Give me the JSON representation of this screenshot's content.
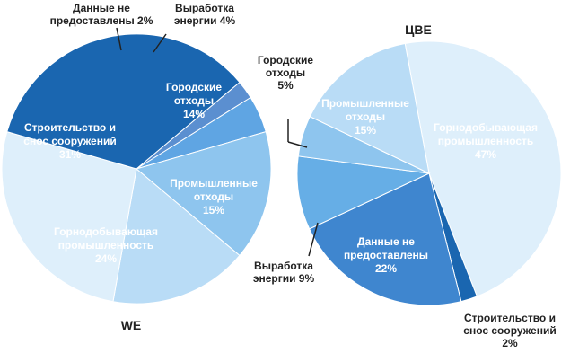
{
  "chart_data": [
    {
      "type": "pie",
      "title": "WE",
      "slices": [
        {
          "label": "Данные не предоставлены",
          "label_lines": [
            "Данные не",
            "предоставлены 2%"
          ],
          "value": 2,
          "color": "#5b8fd0"
        },
        {
          "label": "Выработка энергии",
          "label_lines": [
            "Выработка",
            "энергии 4%"
          ],
          "value": 4,
          "color": "#5fa5e3"
        },
        {
          "label": "Городские отходы",
          "label_lines": [
            "Городские",
            "отходы",
            "14%"
          ],
          "value": 14,
          "color": "#8ec5ee"
        },
        {
          "label": "Промышленные отходы",
          "label_lines": [
            "Промышленные",
            "отходы",
            "15%"
          ],
          "value": 15,
          "color": "#b9dcf6"
        },
        {
          "label": "Горнодобывающая промышленность",
          "label_lines": [
            "Горнодобывающая",
            "промышленность",
            "24%"
          ],
          "value": 24,
          "color": "#deeffb"
        },
        {
          "label": "Строительство и снос сооружений",
          "label_lines": [
            "Строительство и",
            "снос сооружений",
            "31%"
          ],
          "value": 31,
          "color": "#1a66b0"
        }
      ]
    },
    {
      "type": "pie",
      "title": "ЦВЕ",
      "slices": [
        {
          "label": "Горнодобывающая промышленность",
          "label_lines": [
            "Горнодобывающая",
            "промышленность",
            "47%"
          ],
          "value": 47,
          "color": "#deeffb"
        },
        {
          "label": "Строительство и снос сооружений",
          "label_lines": [
            "Строительство и",
            "снос сооружений",
            "2%"
          ],
          "value": 2,
          "color": "#1a66b0"
        },
        {
          "label": "Данные не предоставлены",
          "label_lines": [
            "Данные не",
            "предоставлены",
            "22%"
          ],
          "value": 22,
          "color": "#3f86cf"
        },
        {
          "label": "Выработка энергии",
          "label_lines": [
            "Выработка",
            "энергии 9%"
          ],
          "value": 9,
          "color": "#66aee6"
        },
        {
          "label": "Городские отходы",
          "label_lines": [
            "Городские",
            "отходы",
            "5%"
          ],
          "value": 5,
          "color": "#8ec5ee"
        },
        {
          "label": "Промышленные отходы",
          "label_lines": [
            "Промышленные",
            "отходы",
            "15%"
          ],
          "value": 15,
          "color": "#b9dcf6"
        }
      ]
    }
  ]
}
